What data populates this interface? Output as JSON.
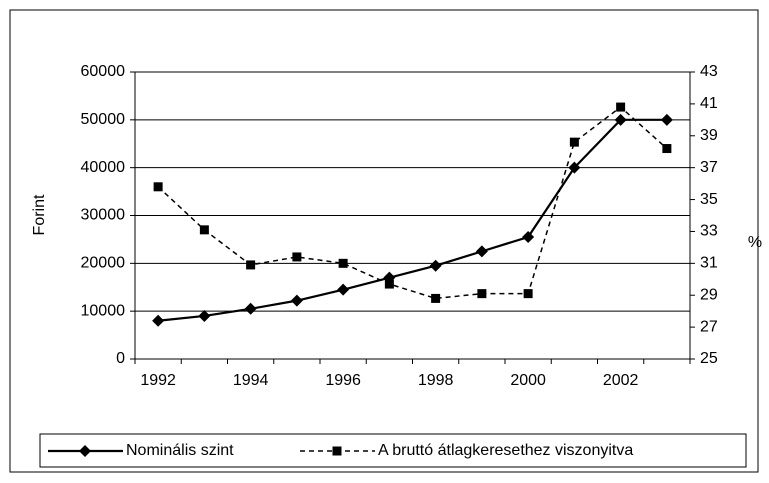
{
  "chart_data": {
    "type": "line",
    "categories": [
      "1992",
      null,
      "1994",
      null,
      "1996",
      null,
      "1998",
      null,
      "2000",
      null,
      "2002",
      null
    ],
    "series": [
      {
        "name": "Nominális szint",
        "color": "#000000",
        "marker": "diamond",
        "dashed": false,
        "values": [
          8000,
          9000,
          10500,
          12200,
          14500,
          17000,
          19500,
          22500,
          25500,
          40000,
          50000,
          50000
        ]
      },
      {
        "name": "A bruttó átlagkeresethez viszonyitva",
        "color": "#000000",
        "marker": "square",
        "dashed": true,
        "axis": "y2",
        "values": [
          35.8,
          33.1,
          30.9,
          31.4,
          31.0,
          29.7,
          28.8,
          29.1,
          29.1,
          38.6,
          40.8,
          38.2
        ]
      }
    ],
    "ylabel": "Forint",
    "y2label": "%",
    "ylim": [
      0,
      60000
    ],
    "yticks": [
      0,
      10000,
      20000,
      30000,
      40000,
      50000,
      60000
    ],
    "y2lim": [
      25,
      43
    ],
    "y2ticks": [
      25,
      27,
      29,
      31,
      33,
      35,
      37,
      39,
      41,
      43
    ],
    "grid": true,
    "legend": "bottom"
  }
}
